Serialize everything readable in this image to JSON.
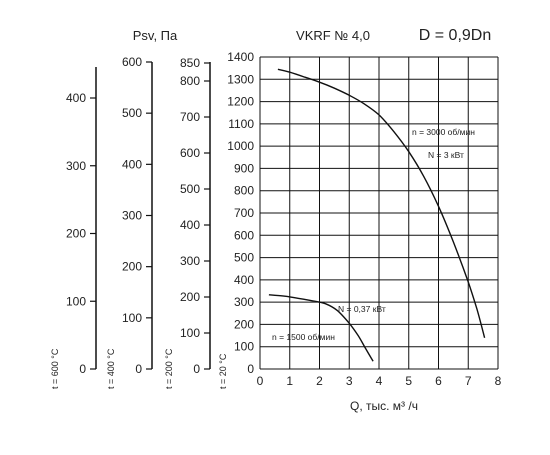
{
  "header": {
    "pressure_label": "Psv, Па",
    "model": "VKRF № 4,0",
    "diameter": "D = 0,9Dn"
  },
  "chart_data": {
    "type": "line",
    "title": "VKRF № 4,0",
    "xlabel": "Q, тыс. м³ /ч",
    "ylabel": "Psv, Па",
    "xlim": [
      0,
      8
    ],
    "ylim": [
      0,
      1400
    ],
    "grid": true,
    "x_ticks": [
      "0",
      "1",
      "2",
      "3",
      "4",
      "5",
      "6",
      "7",
      "8"
    ],
    "y_ticks": [
      "0",
      "100",
      "200",
      "300",
      "400",
      "500",
      "600",
      "700",
      "800",
      "900",
      "1000",
      "1100",
      "1200",
      "1300",
      "1400"
    ],
    "series": [
      {
        "x": [
          0.6,
          1.0,
          1.5,
          2.0,
          2.5,
          3.0,
          3.5,
          4.0,
          4.5,
          5.0,
          5.5,
          6.0,
          6.5,
          7.0,
          7.3,
          7.55
        ],
        "values": [
          1345,
          1332,
          1310,
          1287,
          1260,
          1228,
          1190,
          1140,
          1065,
          975,
          865,
          730,
          570,
          390,
          265,
          140
        ]
      },
      {
        "x": [
          0.3,
          0.8,
          1.3,
          1.8,
          2.2,
          2.6,
          3.0,
          3.3,
          3.55,
          3.8
        ],
        "values": [
          333,
          327,
          317,
          305,
          293,
          262,
          205,
          150,
          92,
          35
        ]
      }
    ],
    "annotations": [
      "n = 3000 об/мин",
      "N = 3 кВт",
      "N = 0,37 кВт",
      "n = 1500 об/мин"
    ]
  },
  "side_scales": [
    {
      "caption": "t = 600 °C",
      "ticks": [
        "0",
        "100",
        "200",
        "300",
        "400"
      ],
      "values": [
        0,
        100,
        200,
        300,
        400
      ]
    },
    {
      "caption": "t = 400 °C",
      "ticks": [
        "0",
        "100",
        "200",
        "300",
        "400",
        "500",
        "600"
      ],
      "values": [
        0,
        100,
        200,
        300,
        400,
        500,
        600
      ]
    },
    {
      "caption": "t = 200 °C",
      "ticks": [
        "0",
        "100",
        "200",
        "300",
        "400",
        "500",
        "600",
        "700",
        "800",
        "850"
      ],
      "values": [
        0,
        100,
        200,
        300,
        400,
        500,
        600,
        700,
        800,
        850
      ]
    },
    {
      "caption": "t = 20 °C",
      "ticks": [],
      "values": []
    }
  ]
}
